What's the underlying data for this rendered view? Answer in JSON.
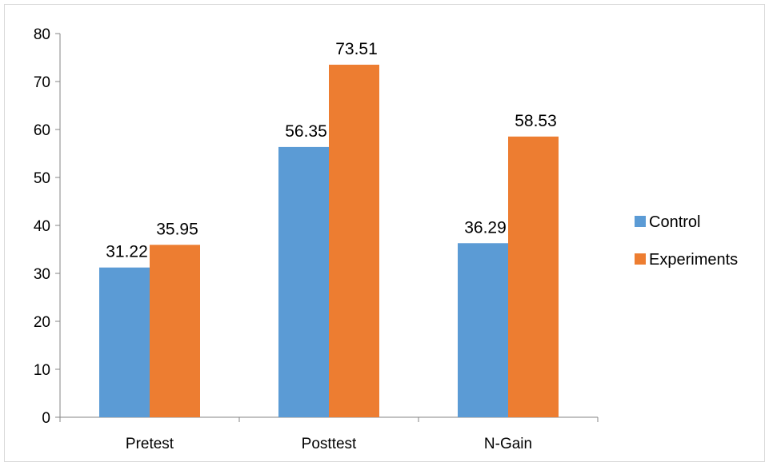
{
  "chart_data": {
    "type": "bar",
    "categories": [
      "Pretest",
      "Posttest",
      "N-Gain"
    ],
    "series": [
      {
        "name": "Control",
        "values": [
          31.22,
          56.35,
          36.29
        ],
        "color": "#5b9bd5"
      },
      {
        "name": "Experiments",
        "values": [
          35.95,
          73.51,
          58.53
        ],
        "color": "#ed7d31"
      }
    ],
    "data_labels": [
      [
        "31.22",
        "56.35",
        "36.29"
      ],
      [
        "35.95",
        "73.51",
        "58.53"
      ]
    ],
    "y_ticks": [
      "0",
      "10",
      "20",
      "30",
      "40",
      "50",
      "60",
      "70",
      "80"
    ],
    "ylim": [
      0,
      80
    ],
    "grid": false,
    "legend_position": "right",
    "axis_color": "#868686"
  }
}
